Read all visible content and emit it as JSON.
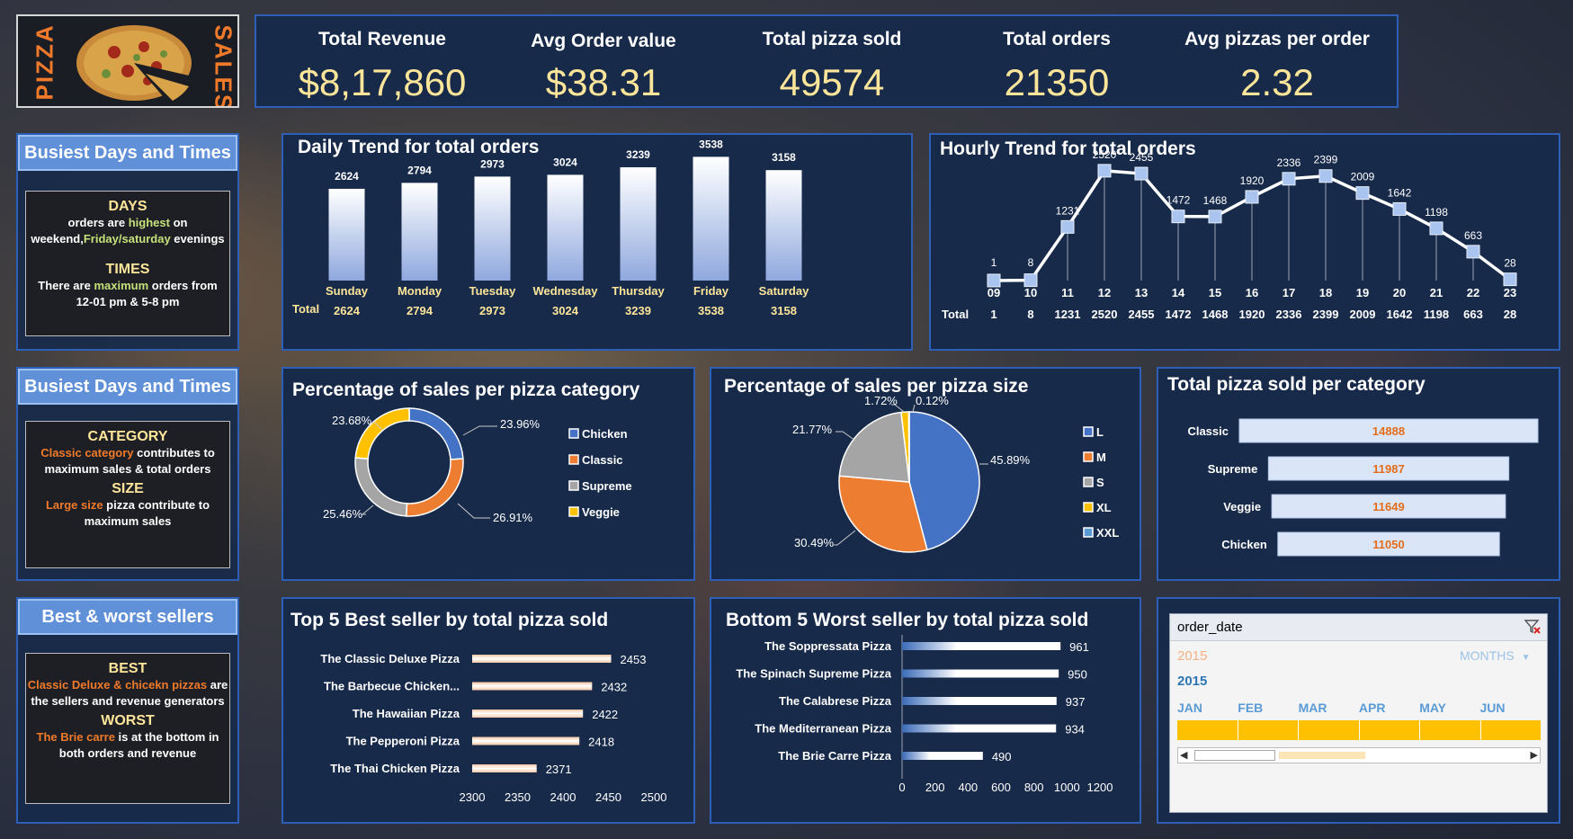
{
  "brand": {
    "left": "PIZZA",
    "right": "SALES"
  },
  "kpis": [
    {
      "label": "Total Revenue",
      "value": "$8,17,860"
    },
    {
      "label": "Avg Order value",
      "value": "$38.31"
    },
    {
      "label": "Total pizza sold",
      "value": "49574"
    },
    {
      "label": "Total orders",
      "value": "21350"
    },
    {
      "label": "Avg pizzas per order",
      "value": "2.32"
    }
  ],
  "side": {
    "s1": {
      "title": "Busiest Days and Times",
      "h1": "DAYS",
      "t1a": "orders are ",
      "t1b": "highest",
      "t1c": " on",
      "t1d": "weekend,",
      "t1e": "Friday/saturday",
      "t1f": " evenings",
      "h2": "TIMES",
      "t2a": "There are ",
      "t2b": "maximum",
      "t2c": " orders from",
      "t2d": "12-01 pm & 5-8 pm"
    },
    "s2": {
      "title": "Busiest Days and Times",
      "h1": "CATEGORY",
      "t1a": "Classic category",
      "t1b": " contributes to",
      "t1c": "maximum sales & total orders",
      "h2": "SIZE",
      "t2a": "Large size",
      "t2b": " pizza contribute to",
      "t2c": "maximum sales"
    },
    "s3": {
      "title": "Best & worst sellers",
      "h1": "BEST",
      "t1a": "Classic Deluxe & chicekn pizzas",
      "t1b": " are",
      "t1c": "the sellers and revenue generators",
      "h2": "WORST",
      "t2a": "The Brie carre",
      "t2b": " is at the bottom in",
      "t2c": "both orders and revenue"
    }
  },
  "chart_data": [
    {
      "id": "daily",
      "type": "bar",
      "title": "Daily Trend for total orders",
      "categories": [
        "Sunday",
        "Monday",
        "Tuesday",
        "Wednesday",
        "Thursday",
        "Friday",
        "Saturday"
      ],
      "values": [
        2624,
        2794,
        2973,
        3024,
        3239,
        3538,
        3158
      ],
      "total_label": "Total",
      "ylim": [
        0,
        3600
      ]
    },
    {
      "id": "hourly",
      "type": "line",
      "title": "Hourly Trend for total orders",
      "categories": [
        "09",
        "10",
        "11",
        "12",
        "13",
        "14",
        "15",
        "16",
        "17",
        "18",
        "19",
        "20",
        "21",
        "22",
        "23"
      ],
      "values": [
        1,
        8,
        1231,
        2520,
        2455,
        1472,
        1468,
        1920,
        2336,
        2399,
        2009,
        1642,
        1198,
        663,
        28
      ],
      "total_label": "Total",
      "ylim": [
        0,
        2600
      ]
    },
    {
      "id": "category",
      "type": "pie",
      "title": "Percentage of sales per pizza category",
      "labels": [
        "Chicken",
        "Classic",
        "Supreme",
        "Veggie"
      ],
      "values": [
        23.96,
        26.91,
        25.46,
        23.68
      ],
      "value_labels": [
        "23.96%",
        "26.91%",
        "25.46%",
        "23.68%"
      ],
      "colors": [
        "#4472c4",
        "#ed7d31",
        "#a5a5a5",
        "#ffc000"
      ]
    },
    {
      "id": "size",
      "type": "pie",
      "title": "Percentage of sales per pizza size",
      "labels": [
        "L",
        "M",
        "S",
        "XL",
        "XXL"
      ],
      "values": [
        45.89,
        30.49,
        21.77,
        1.72,
        0.12
      ],
      "value_labels": [
        "45.89%",
        "30.49%",
        "21.77%",
        "1.72%",
        "0.12%"
      ],
      "colors": [
        "#4472c4",
        "#ed7d31",
        "#a5a5a5",
        "#ffc000",
        "#5b9bd5"
      ]
    },
    {
      "id": "percat",
      "type": "bar",
      "title": "Total pizza sold per category",
      "categories": [
        "Classic",
        "Supreme",
        "Veggie",
        "Chicken"
      ],
      "values": [
        14888,
        11987,
        11649,
        11050
      ],
      "value_labels": [
        "14888",
        "11987",
        "11649",
        "11050"
      ]
    },
    {
      "id": "top5",
      "type": "bar",
      "title": "Top 5 Best seller by total pizza sold",
      "categories": [
        "The Classic Deluxe Pizza",
        "The Barbecue Chicken...",
        "The Hawaiian Pizza",
        "The Pepperoni Pizza",
        "The Thai Chicken Pizza"
      ],
      "values": [
        2453,
        2432,
        2422,
        2418,
        2371
      ],
      "xlim": [
        2300,
        2500
      ],
      "xticks": [
        "2300",
        "2350",
        "2400",
        "2450",
        "2500"
      ]
    },
    {
      "id": "bottom5",
      "type": "bar",
      "title": "Bottom 5 Worst seller by total pizza sold",
      "categories": [
        "The Soppressata Pizza",
        "The Spinach Supreme Pizza",
        "The Calabrese Pizza",
        "The Mediterranean Pizza",
        "The Brie Carre Pizza"
      ],
      "values": [
        961,
        950,
        937,
        934,
        490
      ],
      "xlim": [
        0,
        1200
      ],
      "xticks": [
        "0",
        "200",
        "400",
        "600",
        "800",
        "1000",
        "1200"
      ]
    }
  ],
  "slicer": {
    "field": "order_date",
    "year_faded": "2015",
    "period": "MONTHS",
    "year": "2015",
    "months": [
      "JAN",
      "FEB",
      "MAR",
      "APR",
      "MAY",
      "JUN"
    ],
    "filter_icon": "clear-filter-icon"
  }
}
